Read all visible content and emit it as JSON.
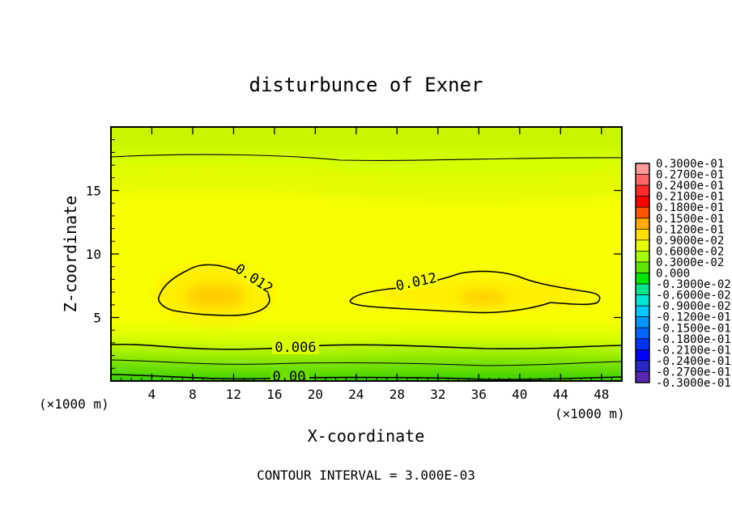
{
  "chart_data": {
    "type": "heatmap",
    "title": "disturbunce of Exner",
    "xlabel": "X-coordinate",
    "ylabel": "Z-coordinate",
    "x_unit_label": "(×1000 m)",
    "x_unit_label_left": "(×1000 m)",
    "xlim": [
      0,
      50
    ],
    "ylim": [
      0,
      20
    ],
    "x_ticks": [
      4,
      8,
      12,
      16,
      20,
      24,
      28,
      32,
      36,
      40,
      44,
      48
    ],
    "y_ticks": [
      5,
      10,
      15
    ],
    "footnote": "CONTOUR INTERVAL = 3.000E-03",
    "contour_labels": [
      "0.012",
      "0.012",
      "0.006",
      "0.00"
    ],
    "colorbar_labels": [
      "0.3000e-01",
      "0.2700e-01",
      "0.2400e-01",
      "0.2100e-01",
      "0.1800e-01",
      "0.1500e-01",
      "0.1200e-01",
      "0.9000e-02",
      "0.6000e-02",
      "0.3000e-02",
      "0.000",
      "-0.3000e-02",
      "-0.6000e-02",
      "-0.9000e-02",
      "-0.1200e-01",
      "-0.1500e-01",
      "-0.1800e-01",
      "-0.2100e-01",
      "-0.2400e-01",
      "-0.2700e-01",
      "-0.3000e-01"
    ],
    "colorbar_values": [
      0.03,
      0.027,
      0.024,
      0.021,
      0.018,
      0.015,
      0.012,
      0.009,
      0.006,
      0.003,
      0.0,
      -0.003,
      -0.006,
      -0.009,
      -0.012,
      -0.015,
      -0.018,
      -0.021,
      -0.024,
      -0.027,
      -0.03
    ],
    "colorbar_colors": [
      "#ff9a9a",
      "#ff6666",
      "#ff2a2a",
      "#ff0000",
      "#ff5500",
      "#ffaa00",
      "#ffe000",
      "#e6ff00",
      "#a6ff00",
      "#5ee600",
      "#00e600",
      "#00e68c",
      "#00e6d2",
      "#00c8ff",
      "#0096ff",
      "#0064ff",
      "#0032ff",
      "#0000ff",
      "#2828c8",
      "#5a28b4",
      "#7828a0"
    ],
    "field_summary": {
      "maxima": [
        {
          "x": 10.5,
          "z": 7.0,
          "value": 0.0135
        },
        {
          "x": 36,
          "z": 6.8,
          "value": 0.0133
        }
      ]
    }
  }
}
